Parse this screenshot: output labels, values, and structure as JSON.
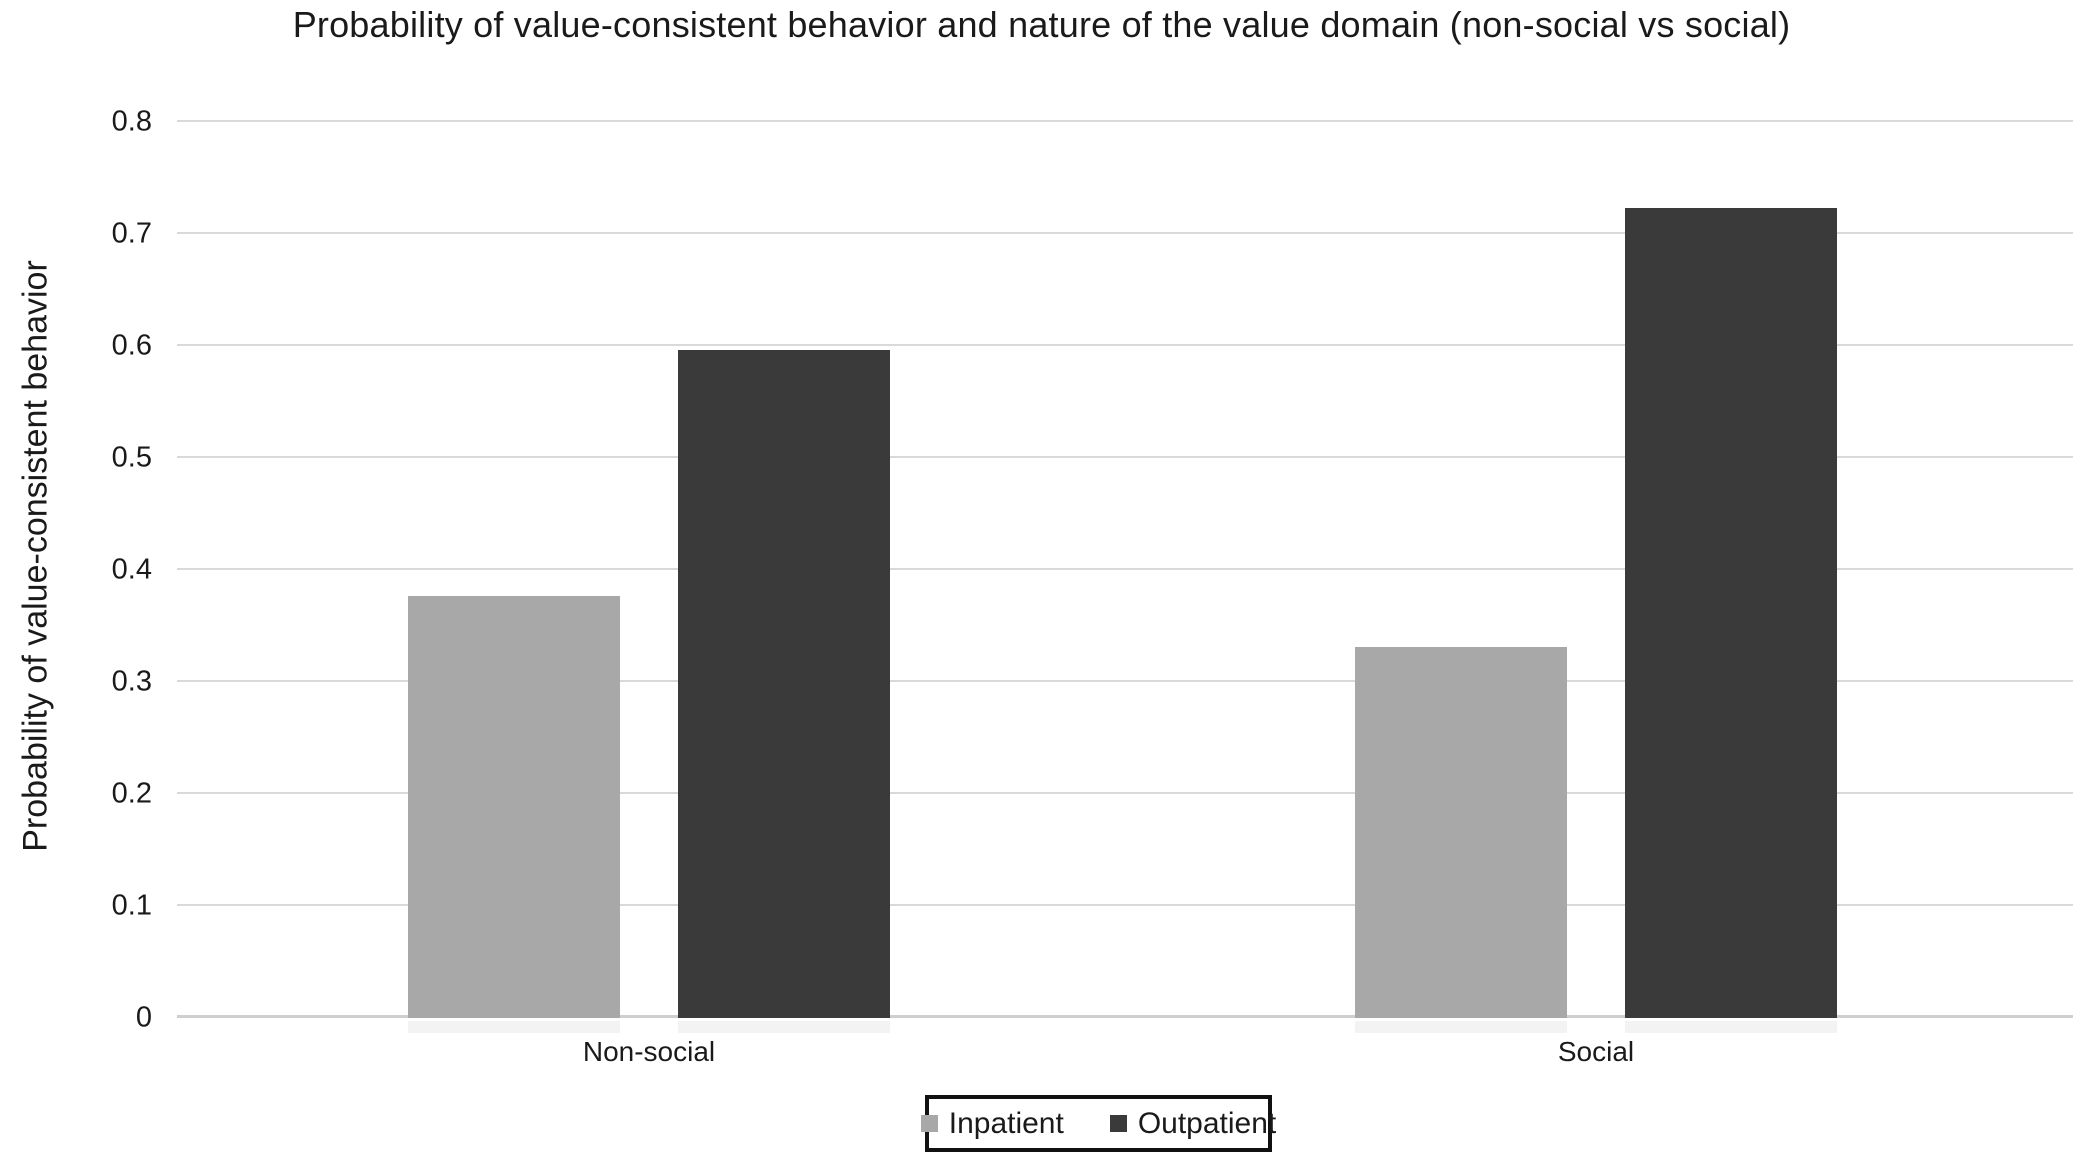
{
  "chart_data": {
    "type": "bar",
    "title": "Probability of value-consistent behavior and nature of the value domain (non-social vs social)",
    "ylabel": "Probability of value-consistent behavior",
    "xlabel": "",
    "categories": [
      "Non-social",
      "Social"
    ],
    "series": [
      {
        "name": "Inpatient",
        "color": "#a8a8a8",
        "values": [
          0.377,
          0.331
        ]
      },
      {
        "name": "Outpatient",
        "color": "#3a3a3a",
        "values": [
          0.596,
          0.723
        ]
      }
    ],
    "ylim": [
      0,
      0.8
    ],
    "ytick_labels": [
      "0",
      "0.1",
      "0.2",
      "0.3",
      "0.4",
      "0.5",
      "0.6",
      "0.7",
      "0.8"
    ],
    "grid": true,
    "legend_position": "bottom",
    "colors": {
      "gridline": "#d9d9d9",
      "baseline": "#cfcfcf",
      "text": "#1a1a1a",
      "legend_border": "#111111"
    }
  }
}
